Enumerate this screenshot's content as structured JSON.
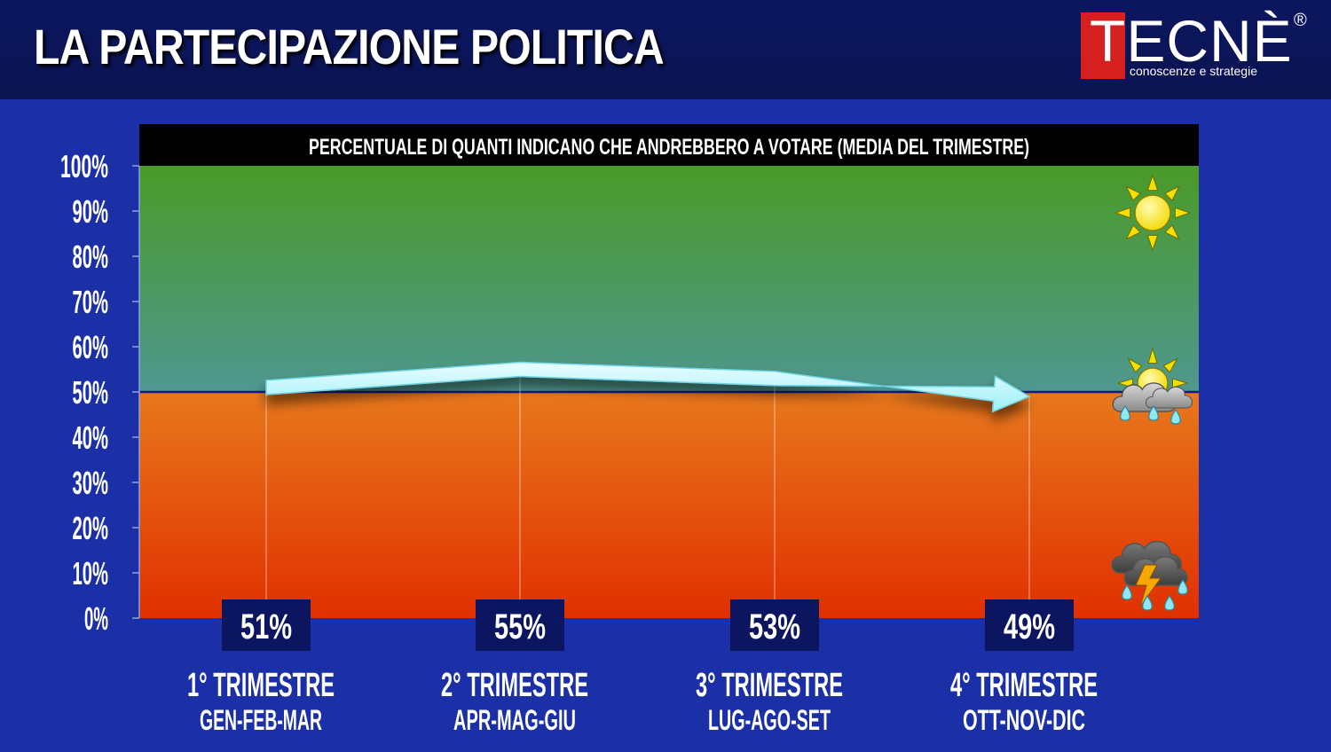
{
  "header": {
    "title": "LA PARTECIPAZIONE POLITICA",
    "logo": {
      "word": "TECNÈ",
      "registered": "®",
      "tagline": "conoscenze e strategie"
    }
  },
  "colors": {
    "background": "#1b2fa6",
    "header": "#0c1660",
    "upper_zone_top": "#4a9a28",
    "upper_zone_bottom": "#4f9890",
    "lower_zone_top": "#e8781c",
    "lower_zone_bottom": "#e03000",
    "subtitle_text": "#ffff40",
    "arrow": "#9ef0f8",
    "logo_red": "#d61f1f"
  },
  "chart_data": {
    "type": "line",
    "title": "PERCENTUALE DI QUANTI INDICANO CHE ANDREBBERO A VOTARE (MEDIA DEL TRIMESTRE)",
    "categories": [
      "1° TRIMESTRE",
      "2° TRIMESTRE",
      "3° TRIMESTRE",
      "4° TRIMESTRE"
    ],
    "category_sublabels": [
      "GEN-FEB-MAR",
      "APR-MAG-GIU",
      "LUG-AGO-SET",
      "OTT-NOV-DIC"
    ],
    "values": [
      51,
      55,
      53,
      49
    ],
    "value_labels": [
      "51%",
      "55%",
      "53%",
      "49%"
    ],
    "ylim": [
      0,
      100
    ],
    "yticks": [
      "0%",
      "10%",
      "20%",
      "30%",
      "40%",
      "50%",
      "60%",
      "70%",
      "80%",
      "90%",
      "100%"
    ],
    "threshold": 50,
    "icons": [
      "sun-icon",
      "sun-behind-rain-cloud-icon",
      "thunderstorm-icon"
    ]
  }
}
